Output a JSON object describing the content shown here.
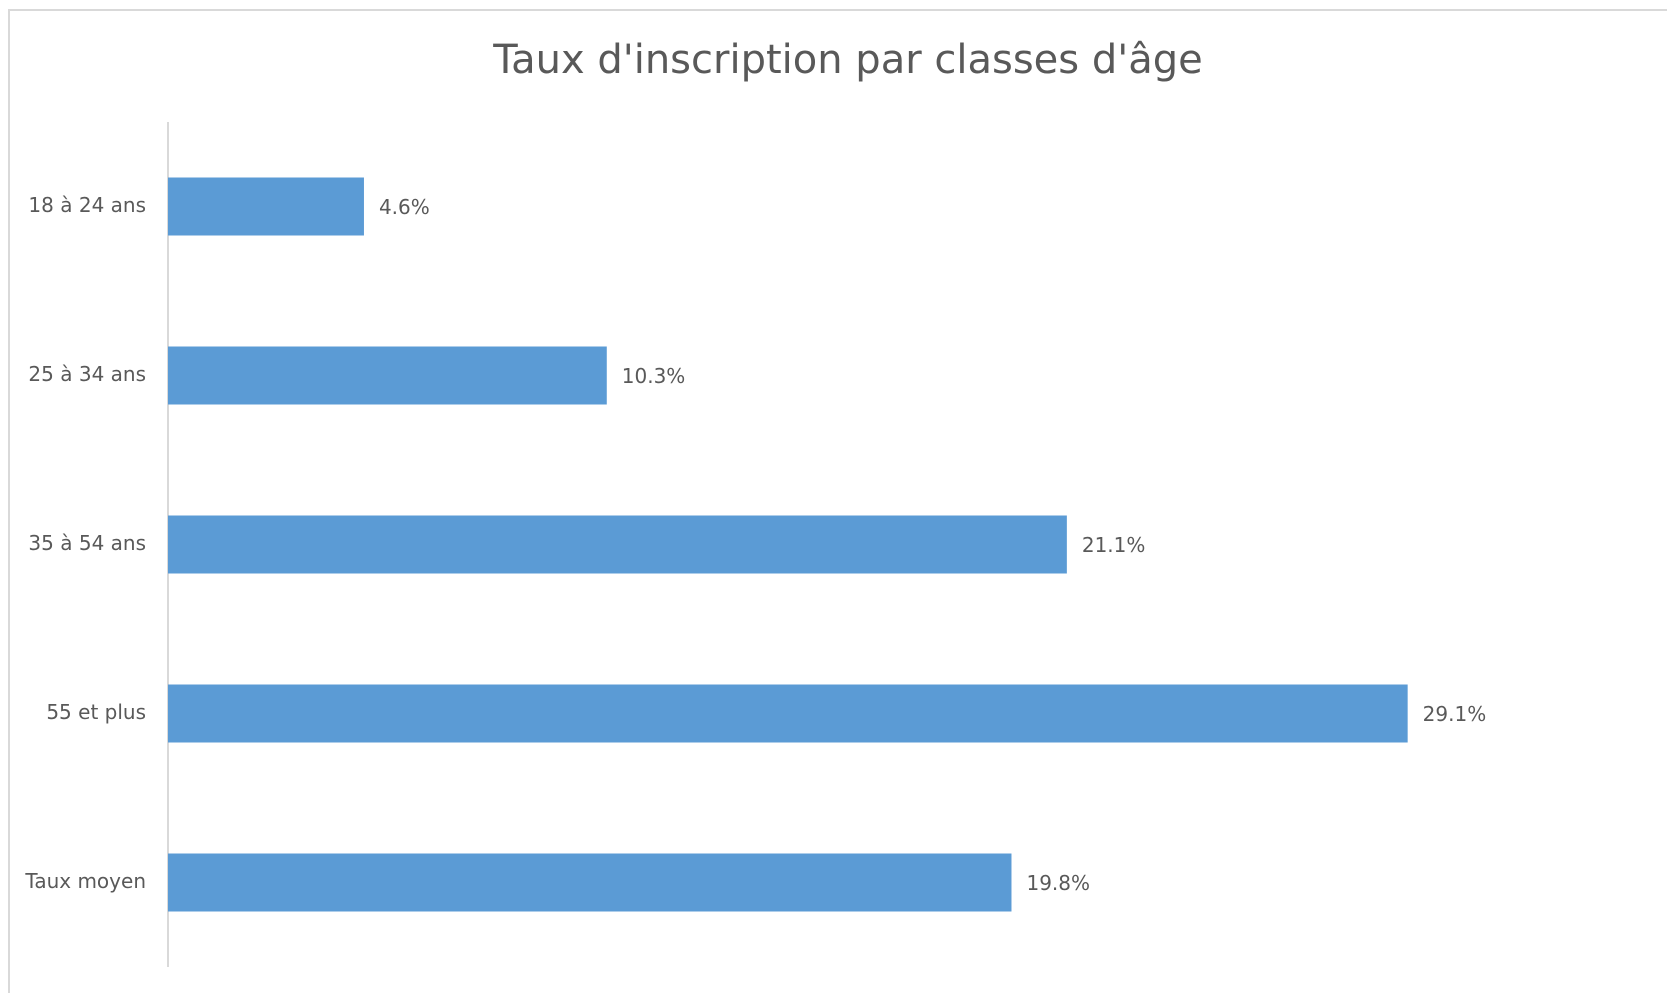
{
  "chart_data": {
    "type": "barh",
    "title": "Taux d'inscription par classes d'âge",
    "categories": [
      "18 à 24 ans",
      "25 à 34 ans",
      "35 à 54 ans",
      "55 et plus",
      "Taux moyen"
    ],
    "values": [
      4.6,
      10.3,
      21.1,
      29.1,
      19.8
    ],
    "value_labels": [
      "4.6%",
      "10.3%",
      "21.1%",
      "29.1%",
      "19.8%"
    ],
    "color": "#5b9bd5",
    "xlim": [
      0,
      35
    ]
  }
}
